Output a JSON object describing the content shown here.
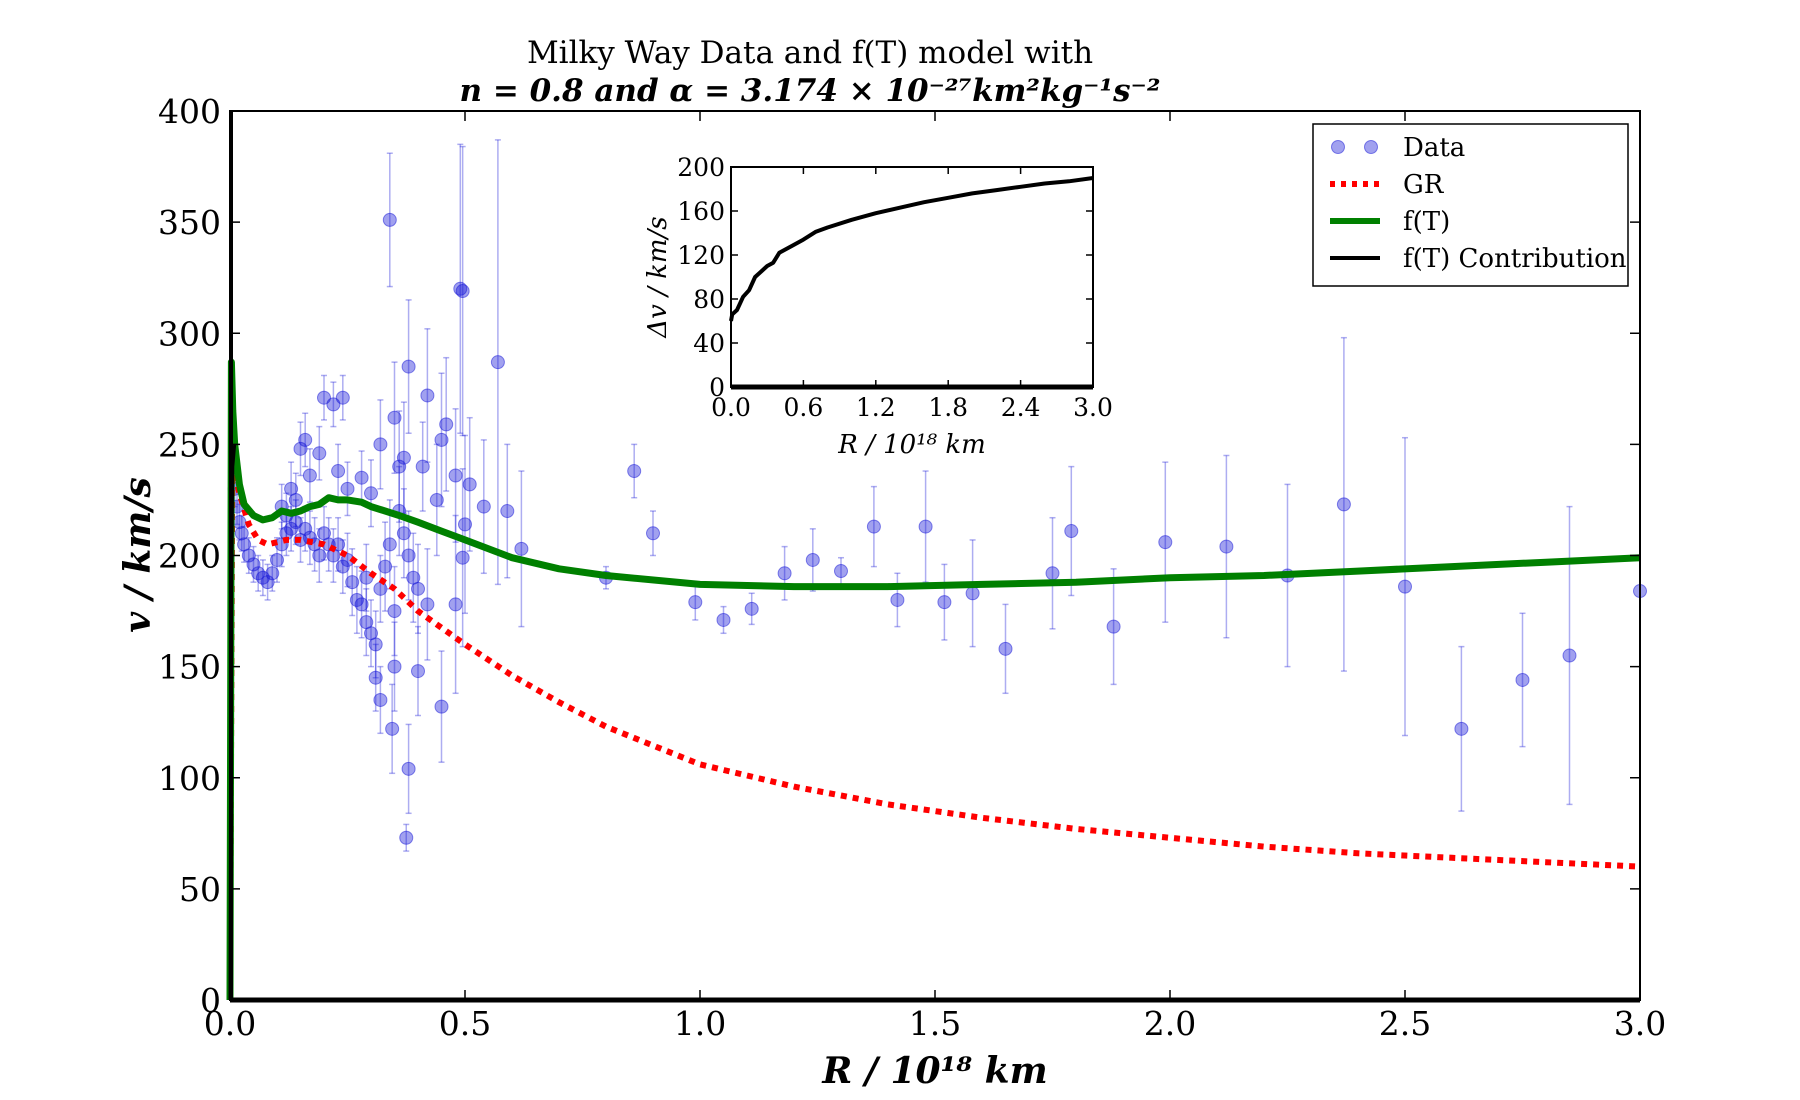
{
  "chart_data": {
    "type": "scatter",
    "title": "Milky Way Data and  f(T) model with",
    "subtitle": "n = 0.8 and α = 3.174 × 10⁻²⁷km²kg⁻¹s⁻²",
    "xlabel": "R / 10¹⁸ km",
    "ylabel": "v / km/s",
    "xlim": [
      0.0,
      3.0
    ],
    "ylim": [
      0,
      400
    ],
    "xticks": [
      "0.0",
      "0.5",
      "1.0",
      "1.5",
      "2.0",
      "2.5",
      "3.0"
    ],
    "yticks": [
      "0",
      "50",
      "100",
      "150",
      "200",
      "250",
      "300",
      "350",
      "400"
    ],
    "legend": {
      "position": "top-right",
      "entries": [
        "Data",
        "GR",
        "f(T)",
        "f(T) Contribution"
      ]
    },
    "colors": {
      "data": "#1515d8",
      "gr": "#ff0000",
      "ft": "#008000",
      "contribution": "#000000"
    },
    "series": [
      {
        "name": "Data",
        "style": "points-with-error-bars",
        "points": [
          {
            "x": 0.01,
            "y": 230,
            "err": 8
          },
          {
            "x": 0.015,
            "y": 222,
            "err": 8
          },
          {
            "x": 0.02,
            "y": 215,
            "err": 8
          },
          {
            "x": 0.025,
            "y": 210,
            "err": 8
          },
          {
            "x": 0.03,
            "y": 205,
            "err": 8
          },
          {
            "x": 0.04,
            "y": 200,
            "err": 8
          },
          {
            "x": 0.05,
            "y": 196,
            "err": 8
          },
          {
            "x": 0.06,
            "y": 192,
            "err": 8
          },
          {
            "x": 0.07,
            "y": 190,
            "err": 8
          },
          {
            "x": 0.08,
            "y": 188,
            "err": 8
          },
          {
            "x": 0.09,
            "y": 192,
            "err": 8
          },
          {
            "x": 0.1,
            "y": 198,
            "err": 10
          },
          {
            "x": 0.11,
            "y": 205,
            "err": 10
          },
          {
            "x": 0.12,
            "y": 210,
            "err": 10
          },
          {
            "x": 0.13,
            "y": 212,
            "err": 10
          },
          {
            "x": 0.14,
            "y": 215,
            "err": 10
          },
          {
            "x": 0.15,
            "y": 207,
            "err": 10
          },
          {
            "x": 0.16,
            "y": 212,
            "err": 10
          },
          {
            "x": 0.17,
            "y": 208,
            "err": 12
          },
          {
            "x": 0.18,
            "y": 205,
            "err": 12
          },
          {
            "x": 0.19,
            "y": 200,
            "err": 12
          },
          {
            "x": 0.2,
            "y": 210,
            "err": 12
          },
          {
            "x": 0.21,
            "y": 205,
            "err": 12
          },
          {
            "x": 0.22,
            "y": 200,
            "err": 12
          },
          {
            "x": 0.23,
            "y": 205,
            "err": 12
          },
          {
            "x": 0.24,
            "y": 195,
            "err": 12
          },
          {
            "x": 0.25,
            "y": 198,
            "err": 12
          },
          {
            "x": 0.26,
            "y": 188,
            "err": 15
          },
          {
            "x": 0.27,
            "y": 180,
            "err": 15
          },
          {
            "x": 0.28,
            "y": 178,
            "err": 15
          },
          {
            "x": 0.29,
            "y": 170,
            "err": 15
          },
          {
            "x": 0.3,
            "y": 165,
            "err": 15
          },
          {
            "x": 0.31,
            "y": 160,
            "err": 15
          },
          {
            "x": 0.32,
            "y": 185,
            "err": 15
          },
          {
            "x": 0.33,
            "y": 195,
            "err": 20
          },
          {
            "x": 0.34,
            "y": 205,
            "err": 20
          },
          {
            "x": 0.35,
            "y": 175,
            "err": 20
          },
          {
            "x": 0.36,
            "y": 220,
            "err": 20
          },
          {
            "x": 0.37,
            "y": 210,
            "err": 20
          },
          {
            "x": 0.38,
            "y": 200,
            "err": 20
          },
          {
            "x": 0.39,
            "y": 190,
            "err": 20
          },
          {
            "x": 0.4,
            "y": 185,
            "err": 20
          },
          {
            "x": 0.11,
            "y": 222,
            "err": 10
          },
          {
            "x": 0.12,
            "y": 218,
            "err": 10
          },
          {
            "x": 0.13,
            "y": 230,
            "err": 12
          },
          {
            "x": 0.14,
            "y": 225,
            "err": 12
          },
          {
            "x": 0.15,
            "y": 248,
            "err": 12
          },
          {
            "x": 0.16,
            "y": 252,
            "err": 12
          },
          {
            "x": 0.17,
            "y": 236,
            "err": 12
          },
          {
            "x": 0.19,
            "y": 246,
            "err": 12
          },
          {
            "x": 0.2,
            "y": 271,
            "err": 10
          },
          {
            "x": 0.22,
            "y": 268,
            "err": 10
          },
          {
            "x": 0.24,
            "y": 271,
            "err": 10
          },
          {
            "x": 0.23,
            "y": 238,
            "err": 12
          },
          {
            "x": 0.25,
            "y": 230,
            "err": 12
          },
          {
            "x": 0.28,
            "y": 235,
            "err": 12
          },
          {
            "x": 0.3,
            "y": 228,
            "err": 15
          },
          {
            "x": 0.32,
            "y": 250,
            "err": 20
          },
          {
            "x": 0.35,
            "y": 262,
            "err": 25
          },
          {
            "x": 0.36,
            "y": 240,
            "err": 25
          },
          {
            "x": 0.37,
            "y": 244,
            "err": 25
          },
          {
            "x": 0.38,
            "y": 285,
            "err": 30
          },
          {
            "x": 0.41,
            "y": 240,
            "err": 20
          },
          {
            "x": 0.42,
            "y": 272,
            "err": 30
          },
          {
            "x": 0.44,
            "y": 225,
            "err": 25
          },
          {
            "x": 0.45,
            "y": 252,
            "err": 30
          },
          {
            "x": 0.46,
            "y": 259,
            "err": 30
          },
          {
            "x": 0.48,
            "y": 236,
            "err": 30
          },
          {
            "x": 0.29,
            "y": 190,
            "err": 15
          },
          {
            "x": 0.31,
            "y": 145,
            "err": 15
          },
          {
            "x": 0.32,
            "y": 135,
            "err": 15
          },
          {
            "x": 0.34,
            "y": 351,
            "err": 30
          },
          {
            "x": 0.345,
            "y": 122,
            "err": 20
          },
          {
            "x": 0.35,
            "y": 150,
            "err": 20
          },
          {
            "x": 0.375,
            "y": 73,
            "err": 6
          },
          {
            "x": 0.38,
            "y": 104,
            "err": 20
          },
          {
            "x": 0.4,
            "y": 148,
            "err": 20
          },
          {
            "x": 0.42,
            "y": 178,
            "err": 25
          },
          {
            "x": 0.45,
            "y": 132,
            "err": 25
          },
          {
            "x": 0.48,
            "y": 178,
            "err": 40
          },
          {
            "x": 0.49,
            "y": 320,
            "err": 65
          },
          {
            "x": 0.495,
            "y": 319,
            "err": 65
          },
          {
            "x": 0.495,
            "y": 199,
            "err": 40
          },
          {
            "x": 0.5,
            "y": 214,
            "err": 40
          },
          {
            "x": 0.51,
            "y": 232,
            "err": 30
          },
          {
            "x": 0.54,
            "y": 222,
            "err": 30
          },
          {
            "x": 0.57,
            "y": 287,
            "err": 100
          },
          {
            "x": 0.59,
            "y": 220,
            "err": 30
          },
          {
            "x": 0.62,
            "y": 203,
            "err": 35
          },
          {
            "x": 0.8,
            "y": 190,
            "err": 5
          },
          {
            "x": 0.86,
            "y": 238,
            "err": 12
          },
          {
            "x": 0.9,
            "y": 210,
            "err": 10
          },
          {
            "x": 0.99,
            "y": 179,
            "err": 8
          },
          {
            "x": 1.05,
            "y": 171,
            "err": 6
          },
          {
            "x": 1.11,
            "y": 176,
            "err": 7
          },
          {
            "x": 1.18,
            "y": 192,
            "err": 12
          },
          {
            "x": 1.24,
            "y": 198,
            "err": 14
          },
          {
            "x": 1.3,
            "y": 193,
            "err": 6
          },
          {
            "x": 1.37,
            "y": 213,
            "err": 18
          },
          {
            "x": 1.42,
            "y": 180,
            "err": 12
          },
          {
            "x": 1.48,
            "y": 213,
            "err": 25
          },
          {
            "x": 1.52,
            "y": 179,
            "err": 17
          },
          {
            "x": 1.58,
            "y": 183,
            "err": 24
          },
          {
            "x": 1.65,
            "y": 158,
            "err": 20
          },
          {
            "x": 1.75,
            "y": 192,
            "err": 25
          },
          {
            "x": 1.79,
            "y": 211,
            "err": 29
          },
          {
            "x": 1.88,
            "y": 168,
            "err": 26
          },
          {
            "x": 1.99,
            "y": 206,
            "err": 36
          },
          {
            "x": 2.12,
            "y": 204,
            "err": 41
          },
          {
            "x": 2.25,
            "y": 191,
            "err": 41
          },
          {
            "x": 2.37,
            "y": 223,
            "err": 75
          },
          {
            "x": 2.5,
            "y": 186,
            "err": 67
          },
          {
            "x": 2.62,
            "y": 122,
            "err": 37
          },
          {
            "x": 2.75,
            "y": 144,
            "err": 30
          },
          {
            "x": 2.85,
            "y": 155,
            "err": 67
          },
          {
            "x": 3.0,
            "y": 184,
            "err": 0
          }
        ]
      },
      {
        "name": "GR",
        "style": "dotted",
        "x": [
          0.0,
          0.005,
          0.01,
          0.02,
          0.04,
          0.06,
          0.08,
          0.1,
          0.12,
          0.15,
          0.2,
          0.25,
          0.3,
          0.35,
          0.4,
          0.5,
          0.6,
          0.7,
          0.8,
          1.0,
          1.2,
          1.4,
          1.6,
          1.8,
          2.0,
          2.2,
          2.4,
          2.6,
          2.8,
          3.0
        ],
        "y": [
          0,
          245,
          237,
          228,
          214,
          207,
          205,
          206,
          207,
          207,
          205,
          200,
          192,
          185,
          175,
          160,
          146,
          134,
          123,
          106,
          96,
          88,
          82,
          77,
          73,
          69,
          66,
          64,
          62,
          60
        ]
      },
      {
        "name": "f(T)",
        "style": "solid",
        "x": [
          0.0,
          0.003,
          0.006,
          0.01,
          0.02,
          0.03,
          0.05,
          0.07,
          0.09,
          0.11,
          0.13,
          0.15,
          0.17,
          0.19,
          0.21,
          0.23,
          0.25,
          0.28,
          0.3,
          0.33,
          0.36,
          0.4,
          0.45,
          0.5,
          0.6,
          0.7,
          0.8,
          1.0,
          1.2,
          1.4,
          1.6,
          1.8,
          2.0,
          2.2,
          2.4,
          2.6,
          2.8,
          3.0
        ],
        "y": [
          0,
          287,
          265,
          250,
          232,
          223,
          218,
          216,
          217,
          220,
          219,
          220,
          222,
          223,
          226,
          225,
          225,
          224,
          222,
          220,
          218,
          215,
          211,
          207,
          199,
          194,
          191,
          187,
          186,
          186,
          187,
          188,
          190,
          191,
          193,
          195,
          197,
          199
        ]
      },
      {
        "name": "f(T) Contribution",
        "style": "solid",
        "x": [
          0.0,
          0.002,
          0.004,
          0.006,
          0.01
        ],
        "y": [
          0,
          160,
          200,
          240,
          250
        ]
      }
    ],
    "inset": {
      "xlabel": "R / 10¹⁸ km",
      "ylabel": "Δv / km/s",
      "xlim": [
        0.0,
        3.0
      ],
      "ylim": [
        0,
        200
      ],
      "xticks": [
        "0.0",
        "0.6",
        "1.2",
        "1.8",
        "2.4",
        "3.0"
      ],
      "yticks": [
        "0",
        "40",
        "80",
        "120",
        "160",
        "200"
      ],
      "x": [
        0.0,
        0.01,
        0.05,
        0.1,
        0.15,
        0.2,
        0.25,
        0.3,
        0.35,
        0.4,
        0.45,
        0.5,
        0.6,
        0.7,
        0.8,
        1.0,
        1.2,
        1.4,
        1.6,
        1.8,
        2.0,
        2.2,
        2.4,
        2.6,
        2.8,
        3.0
      ],
      "y": [
        60,
        66,
        70,
        82,
        88,
        100,
        105,
        110,
        113,
        122,
        125,
        128,
        134,
        141,
        145,
        152,
        158,
        163,
        168,
        172,
        176,
        179,
        182,
        185,
        187,
        190
      ]
    }
  }
}
